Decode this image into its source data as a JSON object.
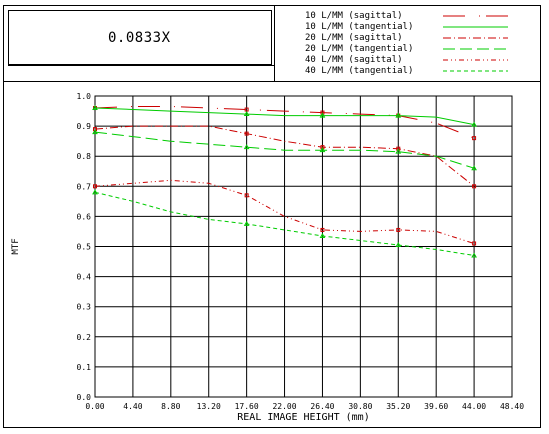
{
  "header": {
    "magnification": "0.0833X"
  },
  "legend": [
    {
      "label": "10 L/MM (sagittal)",
      "color": "#cc0000",
      "dash": "long-dot"
    },
    {
      "label": "10 L/MM (tangential)",
      "color": "#00cc00",
      "dash": "solid"
    },
    {
      "label": "20 L/MM (sagittal)",
      "color": "#cc0000",
      "dash": "dash-dot"
    },
    {
      "label": "20 L/MM (tangential)",
      "color": "#00cc00",
      "dash": "long-dash"
    },
    {
      "label": "40 L/MM (sagittal)",
      "color": "#cc0000",
      "dash": "dash-dot-dot"
    },
    {
      "label": "40 L/MM (tangential)",
      "color": "#00cc00",
      "dash": "short-dash"
    }
  ],
  "chart_data": {
    "type": "line",
    "xlabel": "REAL IMAGE HEIGHT (mm)",
    "ylabel": "MTF",
    "xlim": [
      0,
      48.4
    ],
    "ylim": [
      0,
      1.0
    ],
    "xticks": [
      "0.00",
      "4.40",
      "8.80",
      "13.20",
      "17.60",
      "22.00",
      "26.40",
      "30.80",
      "35.20",
      "39.60",
      "44.00",
      "48.40"
    ],
    "yticks": [
      "0.0",
      "0.1",
      "0.2",
      "0.3",
      "0.4",
      "0.5",
      "0.6",
      "0.7",
      "0.8",
      "0.9",
      "1.0"
    ],
    "grid": true,
    "series": [
      {
        "name": "10 L/MM (sagittal)",
        "color": "#cc0000",
        "x": [
          0,
          4.4,
          8.8,
          13.2,
          17.6,
          22.0,
          26.4,
          30.8,
          35.2,
          39.6,
          44.0
        ],
        "y": [
          0.96,
          0.965,
          0.965,
          0.96,
          0.955,
          0.95,
          0.945,
          0.94,
          0.935,
          0.91,
          0.86
        ]
      },
      {
        "name": "10 L/MM (tangential)",
        "color": "#00cc00",
        "x": [
          0,
          4.4,
          8.8,
          13.2,
          17.6,
          22.0,
          26.4,
          30.8,
          35.2,
          39.6,
          44.0
        ],
        "y": [
          0.96,
          0.955,
          0.95,
          0.945,
          0.94,
          0.935,
          0.935,
          0.935,
          0.935,
          0.93,
          0.905
        ]
      },
      {
        "name": "20 L/MM (sagittal)",
        "color": "#cc0000",
        "x": [
          0,
          4.4,
          8.8,
          13.2,
          17.6,
          22.0,
          26.4,
          30.8,
          35.2,
          39.6,
          44.0
        ],
        "y": [
          0.89,
          0.9,
          0.9,
          0.9,
          0.875,
          0.85,
          0.83,
          0.83,
          0.825,
          0.8,
          0.7
        ]
      },
      {
        "name": "20 L/MM (tangential)",
        "color": "#00cc00",
        "x": [
          0,
          4.4,
          8.8,
          13.2,
          17.6,
          22.0,
          26.4,
          30.8,
          35.2,
          39.6,
          44.0
        ],
        "y": [
          0.88,
          0.865,
          0.85,
          0.84,
          0.83,
          0.82,
          0.82,
          0.82,
          0.815,
          0.8,
          0.76
        ]
      },
      {
        "name": "40 L/MM (sagittal)",
        "color": "#cc0000",
        "x": [
          0,
          4.4,
          8.8,
          13.2,
          17.6,
          22.0,
          26.4,
          30.8,
          35.2,
          39.6,
          44.0
        ],
        "y": [
          0.7,
          0.71,
          0.72,
          0.71,
          0.67,
          0.6,
          0.555,
          0.55,
          0.555,
          0.55,
          0.51
        ]
      },
      {
        "name": "40 L/MM (tangential)",
        "color": "#00cc00",
        "x": [
          0,
          4.4,
          8.8,
          13.2,
          17.6,
          22.0,
          26.4,
          30.8,
          35.2,
          39.6,
          44.0
        ],
        "y": [
          0.68,
          0.65,
          0.615,
          0.59,
          0.575,
          0.555,
          0.535,
          0.52,
          0.505,
          0.49,
          0.47
        ]
      }
    ]
  }
}
